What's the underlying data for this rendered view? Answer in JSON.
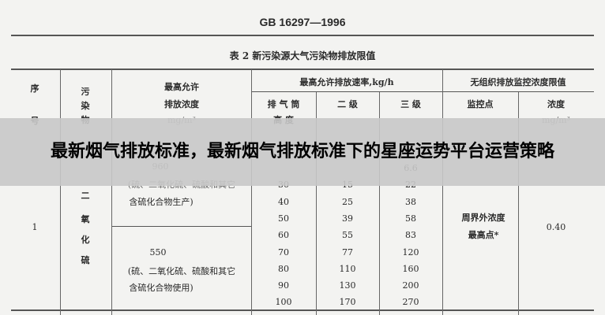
{
  "document": {
    "standard_code": "GB 16297—1996",
    "table_title": "表 2   新污染源大气污染物排放限值",
    "headers": {
      "serial": [
        "序",
        "号"
      ],
      "pollutant": [
        "污",
        "染",
        "物"
      ],
      "max_conc": [
        "最高允许",
        "排放浓度",
        "mg/m³"
      ],
      "max_rate": "最高允许排放速率,kg/h",
      "stack_height": [
        "排 气 筒",
        "高 度"
      ],
      "grade2": "二  级",
      "grade3": "三  级",
      "unorganized": "无组织排放监控浓度限值",
      "monitor_point": "监控点",
      "concentration": [
        "浓度",
        "mg/m³"
      ]
    },
    "row": {
      "serial": "1",
      "pollutant": [
        "二",
        "氧",
        "化",
        "硫"
      ],
      "conc_a_value": "960",
      "conc_a_note": [
        "(硫、二氧化硫、硫酸和其它",
        "含硫化合物生产)"
      ],
      "conc_b_value": "550",
      "conc_b_note": [
        "(硫、二氧化硫、硫酸和其它",
        "含硫化合物使用)"
      ],
      "monitor_point": [
        "周界外浓度",
        "最高点*"
      ],
      "concentration": "0.40",
      "rates": [
        {
          "height": "",
          "grade2": "",
          "grade3": "6.6"
        },
        {
          "height": "30",
          "grade2": "15",
          "grade3": "22"
        },
        {
          "height": "40",
          "grade2": "25",
          "grade3": "38"
        },
        {
          "height": "50",
          "grade2": "39",
          "grade3": "58"
        },
        {
          "height": "60",
          "grade2": "55",
          "grade3": "83"
        },
        {
          "height": "70",
          "grade2": "77",
          "grade3": "120"
        },
        {
          "height": "80",
          "grade2": "110",
          "grade3": "160"
        },
        {
          "height": "90",
          "grade2": "130",
          "grade3": "200"
        },
        {
          "height": "100",
          "grade2": "170",
          "grade3": "270"
        }
      ]
    }
  },
  "overlay": {
    "title": "最新烟气排放标准，最新烟气排放标准下的星座运势平台运营策略",
    "background": "#c8c8c8"
  }
}
